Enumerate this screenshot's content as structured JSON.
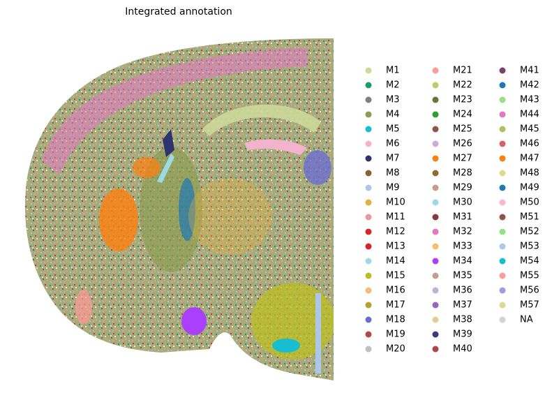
{
  "chart_data": {
    "type": "scatter",
    "title": "Integrated annotation",
    "series": [
      {
        "name": "M1",
        "color": "#cdd89a"
      },
      {
        "name": "M2",
        "color": "#1b9e63"
      },
      {
        "name": "M3",
        "color": "#7f7f7f"
      },
      {
        "name": "M4",
        "color": "#8c9d52"
      },
      {
        "name": "M5",
        "color": "#17becf"
      },
      {
        "name": "M6",
        "color": "#f3b3cc"
      },
      {
        "name": "M7",
        "color": "#2e3470"
      },
      {
        "name": "M8",
        "color": "#8a6030"
      },
      {
        "name": "M9",
        "color": "#aec7e8"
      },
      {
        "name": "M10",
        "color": "#e2b040"
      },
      {
        "name": "M11",
        "color": "#e89a9a"
      },
      {
        "name": "M12",
        "color": "#d62728"
      },
      {
        "name": "M13",
        "color": "#d62728"
      },
      {
        "name": "M14",
        "color": "#9edae5"
      },
      {
        "name": "M15",
        "color": "#bcbd22"
      },
      {
        "name": "M16",
        "color": "#f7b87a"
      },
      {
        "name": "M17",
        "color": "#b8a030"
      },
      {
        "name": "M18",
        "color": "#6b6ecf"
      },
      {
        "name": "M19",
        "color": "#ad494a"
      },
      {
        "name": "M20",
        "color": "#c0c0c0"
      },
      {
        "name": "M21",
        "color": "#ff9896"
      },
      {
        "name": "M22",
        "color": "#b5cf6b"
      },
      {
        "name": "M23",
        "color": "#637939"
      },
      {
        "name": "M24",
        "color": "#2ca02c"
      },
      {
        "name": "M25",
        "color": "#8c564b"
      },
      {
        "name": "M26",
        "color": "#c5b0d5"
      },
      {
        "name": "M27",
        "color": "#ff7f0e"
      },
      {
        "name": "M28",
        "color": "#8c6d31"
      },
      {
        "name": "M29",
        "color": "#c49c94"
      },
      {
        "name": "M30",
        "color": "#9edae5"
      },
      {
        "name": "M31",
        "color": "#843c39"
      },
      {
        "name": "M32",
        "color": "#e377c2"
      },
      {
        "name": "M33",
        "color": "#f5be72"
      },
      {
        "name": "M34",
        "color": "#aa40fc"
      },
      {
        "name": "M35",
        "color": "#c49c94"
      },
      {
        "name": "M36",
        "color": "#c5b0d5"
      },
      {
        "name": "M37",
        "color": "#9467bd"
      },
      {
        "name": "M38",
        "color": "#e7cb94"
      },
      {
        "name": "M39",
        "color": "#393b79"
      },
      {
        "name": "M40",
        "color": "#ad494a"
      },
      {
        "name": "M41",
        "color": "#7b4173"
      },
      {
        "name": "M42",
        "color": "#1f77b4"
      },
      {
        "name": "M43",
        "color": "#98df8a"
      },
      {
        "name": "M44",
        "color": "#e377c2"
      },
      {
        "name": "M45",
        "color": "#b5bd61"
      },
      {
        "name": "M46",
        "color": "#d6616b"
      },
      {
        "name": "M47",
        "color": "#ff7f0e"
      },
      {
        "name": "M48",
        "color": "#dbdb8d"
      },
      {
        "name": "M49",
        "color": "#1f77b4"
      },
      {
        "name": "M50",
        "color": "#f7b6d2"
      },
      {
        "name": "M51",
        "color": "#8c564b"
      },
      {
        "name": "M52",
        "color": "#98df8a"
      },
      {
        "name": "M53",
        "color": "#aec7e8"
      },
      {
        "name": "M54",
        "color": "#17becf"
      },
      {
        "name": "M55",
        "color": "#ff9896"
      },
      {
        "name": "M56",
        "color": "#9c9ede"
      },
      {
        "name": "M57",
        "color": "#dbdb8d"
      },
      {
        "name": "NA",
        "color": "#d3d3d3"
      }
    ]
  }
}
